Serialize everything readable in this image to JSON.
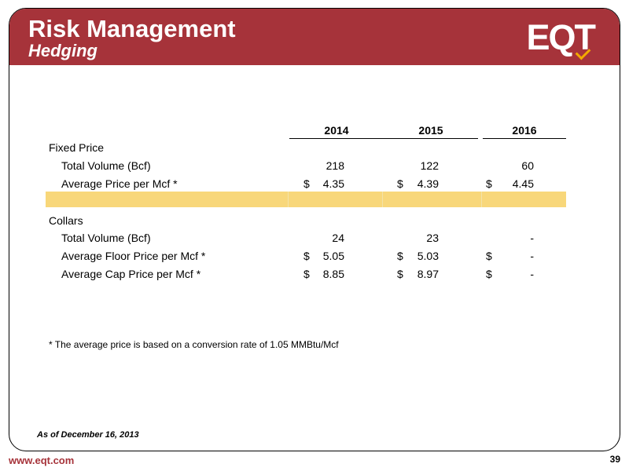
{
  "header": {
    "title": "Risk Management",
    "subtitle": "Hedging",
    "logo_text": "EQT"
  },
  "table": {
    "columns": [
      "2014",
      "2015",
      "2016"
    ],
    "sections": [
      {
        "label": "Fixed Price",
        "rows": [
          {
            "label": "Total Volume (Bcf)",
            "currency": [
              "",
              "",
              ""
            ],
            "values": [
              "218",
              "122",
              "60"
            ]
          },
          {
            "label": "Average Price per Mcf *",
            "currency": [
              "$",
              "$",
              "$"
            ],
            "values": [
              "4.35",
              "4.39",
              "4.45"
            ]
          }
        ]
      },
      {
        "label": "Collars",
        "rows": [
          {
            "label": "Total Volume (Bcf)",
            "currency": [
              "",
              "",
              ""
            ],
            "values": [
              "24",
              "23",
              "-"
            ]
          },
          {
            "label": "Average Floor Price per Mcf *",
            "currency": [
              "$",
              "$",
              "$"
            ],
            "values": [
              "5.05",
              "5.03",
              "-"
            ]
          },
          {
            "label": "Average Cap Price per Mcf *",
            "currency": [
              "$",
              "$",
              "$"
            ],
            "values": [
              "8.85",
              "8.97",
              "-"
            ]
          }
        ]
      }
    ]
  },
  "footnote": "* The average price is based on a conversion rate of 1.05 MMBtu/Mcf",
  "as_of": "As of December 16, 2013",
  "website": "www.eqt.com",
  "page_number": "39",
  "colors": {
    "brand_red": "#a6333a",
    "highlight": "#f8d77a",
    "logo_accent": "#f2a900"
  }
}
